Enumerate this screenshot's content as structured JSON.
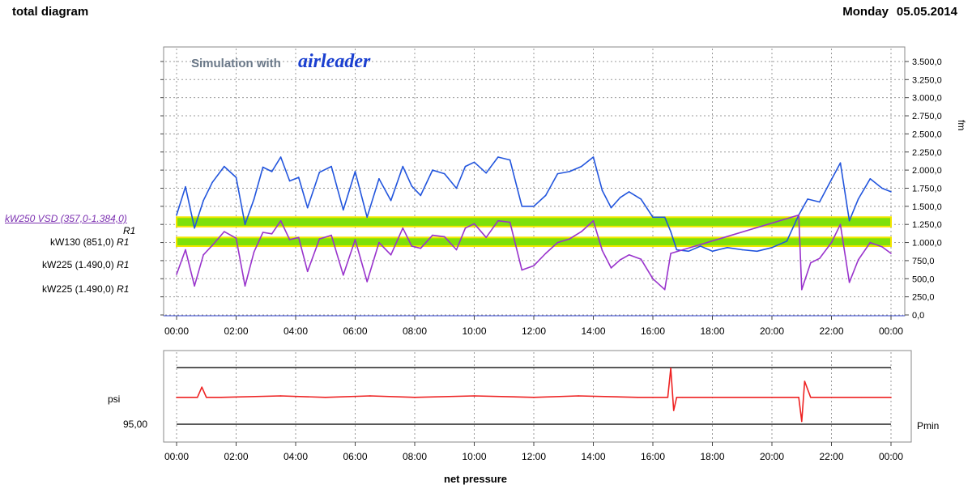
{
  "header": {
    "title": "total diagram",
    "day": "Monday",
    "date": "05.05.2014"
  },
  "brand": {
    "prefix": "Simulation with",
    "logo": "airleader"
  },
  "legend": {
    "items": [
      {
        "label": "kW250 VSD (357,0-1.384,0)",
        "suffix": "R1"
      },
      {
        "label": "kW130 (851,0)",
        "suffix": "R1"
      },
      {
        "label": "kW225 (1.490,0)",
        "suffix": "R1"
      },
      {
        "label": "kW225 (1.490,0)",
        "suffix": "R1"
      }
    ]
  },
  "colors": {
    "flow": "#2255dd",
    "power": "#9933cc",
    "pressure": "#ee2222",
    "band_fill": "#7ee00a",
    "band_edge": "#f2e600",
    "grid": "#9a9a9a"
  },
  "chart_data": [
    {
      "type": "line",
      "title": "",
      "ylabel": "fm",
      "ylim": [
        0,
        3600
      ],
      "yticks": [
        "0,0",
        "250,0",
        "500,0",
        "750,0",
        "1.000,0",
        "1.250,0",
        "1.500,0",
        "1.750,0",
        "2.000,0",
        "2.250,0",
        "2.500,0",
        "2.750,0",
        "3.000,0",
        "3.250,0",
        "3.500,0"
      ],
      "xlim": [
        0,
        24
      ],
      "xticks": [
        "00:00",
        "02:00",
        "04:00",
        "06:00",
        "08:00",
        "10:00",
        "12:00",
        "14:00",
        "16:00",
        "18:00",
        "20:00",
        "22:00",
        "00:00"
      ],
      "bands": [
        {
          "from": 1220,
          "to": 1350
        },
        {
          "from": 950,
          "to": 1070
        }
      ],
      "series": [
        {
          "x": [
            0,
            0.3,
            0.6,
            0.9,
            1.2,
            1.6,
            2.0,
            2.3,
            2.6,
            2.9,
            3.2,
            3.5,
            3.8,
            4.1,
            4.4,
            4.8,
            5.2,
            5.6,
            6.0,
            6.4,
            6.8,
            7.2,
            7.6,
            7.9,
            8.2,
            8.6,
            9.0,
            9.4,
            9.7,
            10.0,
            10.4,
            10.8,
            11.2,
            11.6,
            12.0,
            12.4,
            12.8,
            13.2,
            13.6,
            14.0,
            14.3,
            14.6,
            14.9,
            15.2,
            15.6,
            16.0,
            16.4,
            16.6,
            16.8,
            17.2,
            17.6,
            18.0,
            18.5,
            19.0,
            19.5,
            20.0,
            20.5,
            20.9,
            21.2,
            21.6,
            22.0,
            22.3,
            22.6,
            22.9,
            23.3,
            23.7,
            24.0
          ],
          "values": [
            1380,
            1770,
            1200,
            1580,
            1830,
            2050,
            1900,
            1250,
            1600,
            2040,
            1980,
            2180,
            1850,
            1900,
            1480,
            1970,
            2050,
            1450,
            1980,
            1350,
            1880,
            1580,
            2050,
            1780,
            1650,
            2000,
            1950,
            1750,
            2050,
            2110,
            1960,
            2180,
            2140,
            1500,
            1500,
            1650,
            1950,
            1980,
            2050,
            2180,
            1720,
            1480,
            1620,
            1700,
            1600,
            1350,
            1350,
            1150,
            900,
            880,
            950,
            880,
            930,
            900,
            880,
            930,
            1020,
            1380,
            1600,
            1560,
            1870,
            2100,
            1300,
            1600,
            1880,
            1750,
            1700
          ]
        },
        {
          "x": [
            0,
            0.3,
            0.6,
            0.9,
            1.2,
            1.6,
            2.0,
            2.3,
            2.6,
            2.9,
            3.2,
            3.5,
            3.8,
            4.1,
            4.4,
            4.8,
            5.2,
            5.6,
            6.0,
            6.4,
            6.8,
            7.2,
            7.6,
            7.9,
            8.2,
            8.6,
            9.0,
            9.4,
            9.7,
            10.0,
            10.4,
            10.8,
            11.2,
            11.6,
            12.0,
            12.4,
            12.8,
            13.2,
            13.6,
            14.0,
            14.3,
            14.6,
            14.9,
            15.2,
            15.6,
            16.0,
            16.4,
            16.6,
            20.9,
            21.0,
            21.3,
            21.6,
            22.0,
            22.3,
            22.6,
            22.9,
            23.3,
            23.7,
            24.0
          ],
          "values": [
            560,
            900,
            400,
            830,
            960,
            1150,
            1060,
            400,
            870,
            1140,
            1120,
            1300,
            1040,
            1070,
            600,
            1050,
            1100,
            550,
            1040,
            460,
            1000,
            830,
            1200,
            950,
            920,
            1100,
            1080,
            900,
            1200,
            1260,
            1070,
            1300,
            1280,
            620,
            680,
            850,
            1000,
            1050,
            1150,
            1300,
            890,
            650,
            760,
            830,
            770,
            500,
            350,
            850,
            1380,
            350,
            720,
            780,
            1000,
            1250,
            450,
            760,
            1000,
            940,
            850
          ]
        }
      ]
    },
    {
      "type": "line",
      "title": "",
      "ylabel": "psi",
      "ylim": [
        0,
        100
      ],
      "yticks": [
        "95,00"
      ],
      "xlim": [
        0,
        24
      ],
      "xticks": [
        "00:00",
        "02:00",
        "04:00",
        "06:00",
        "08:00",
        "10:00",
        "12:00",
        "14:00",
        "16:00",
        "18:00",
        "20:00",
        "22:00",
        "00:00"
      ],
      "xlabel": "net pressure",
      "annotations": [
        "Pmin"
      ],
      "series": [
        {
          "x": [
            0,
            0.7,
            0.85,
            1.0,
            1.5,
            3.5,
            5.0,
            6.5,
            8.0,
            10.0,
            12.0,
            13.5,
            15.5,
            16.5,
            16.6,
            16.7,
            16.8,
            17.0,
            20.9,
            21.0,
            21.1,
            21.3,
            23.0,
            24.0
          ],
          "values": [
            48,
            48,
            62,
            48,
            48,
            50,
            48,
            50,
            48,
            50,
            48,
            50,
            48,
            48,
            88,
            30,
            48,
            48,
            48,
            15,
            70,
            48,
            48,
            48
          ]
        }
      ]
    }
  ]
}
